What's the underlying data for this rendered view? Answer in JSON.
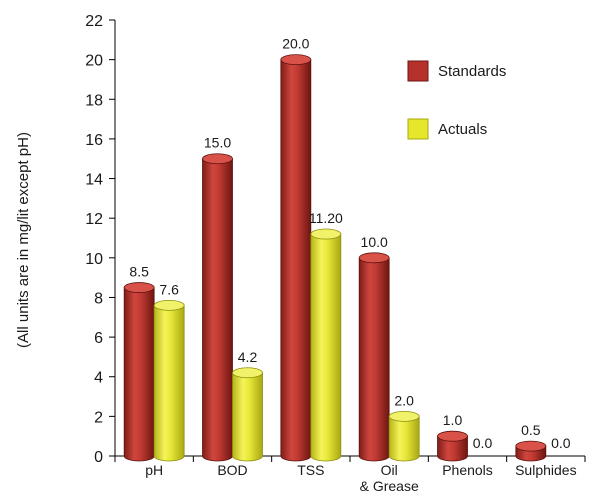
{
  "chart_data": {
    "type": "bar",
    "ylabel": "(All units are in mg/lit except pH)",
    "xlabel": "",
    "ylim": [
      0,
      22
    ],
    "yticks": [
      0,
      2,
      4,
      6,
      8,
      10,
      12,
      14,
      16,
      18,
      20,
      22
    ],
    "categories": [
      "pH",
      "BOD",
      "TSS",
      "Oil\n& Grease",
      "Phenols",
      "Sulphides"
    ],
    "series": [
      {
        "name": "Standards",
        "color": "#b5322c",
        "values": [
          8.5,
          15.0,
          20.0,
          10.0,
          1.0,
          0.5
        ],
        "labels": [
          "8.5",
          "15.0",
          "20.0",
          "10.0",
          "1.0",
          "0.5"
        ]
      },
      {
        "name": "Actuals",
        "color": "#e6e62a",
        "values": [
          7.6,
          4.2,
          11.2,
          2.0,
          0.0,
          0.0
        ],
        "labels": [
          "7.6",
          "4.2",
          "11.20",
          "2.0",
          "0.0",
          "0.0"
        ]
      }
    ],
    "legend": "top-right",
    "grid": false
  }
}
